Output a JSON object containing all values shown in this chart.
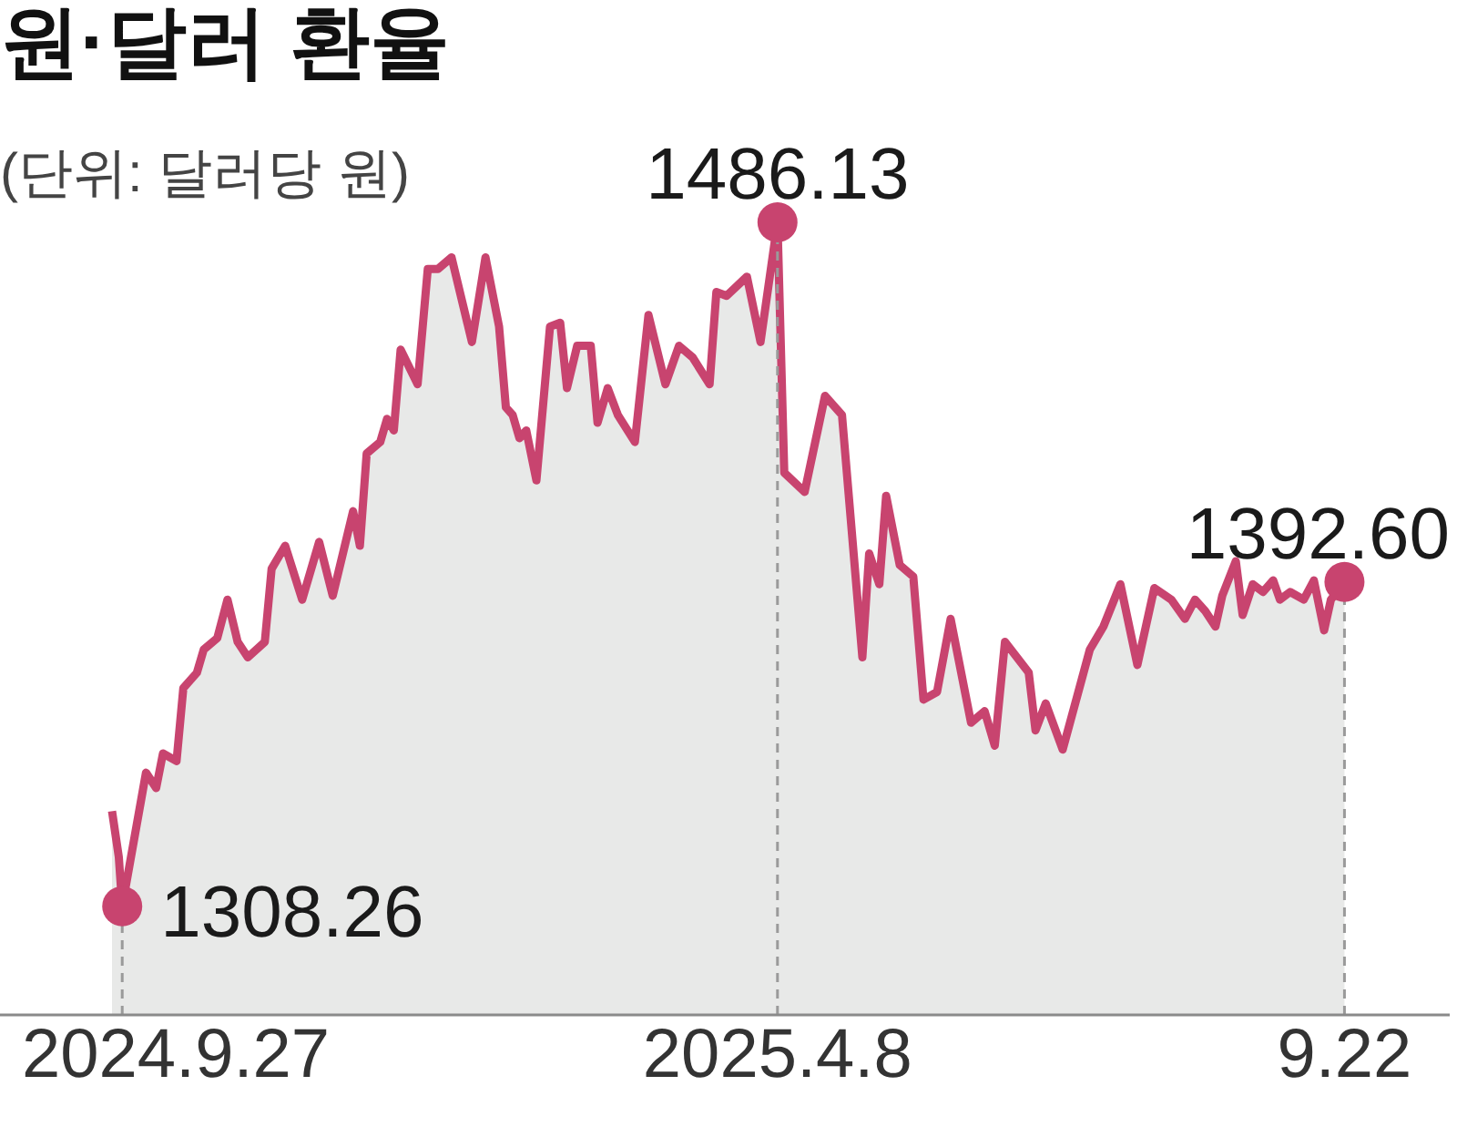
{
  "chart_data": {
    "type": "area",
    "title": "원·달러 환율",
    "subtitle": "(단위: 달러당 원)",
    "xlim": [
      "2024-08-22",
      "2025-10-23"
    ],
    "xticks": [
      {
        "value": "2024-09-27",
        "label": "2024.9.27"
      },
      {
        "value": "2025-04-08",
        "label": "2025.4.8"
      },
      {
        "value": "2025-09-22",
        "label": "9.22"
      }
    ],
    "ylim": [
      1280,
      1486.13
    ],
    "tick_labels": "x",
    "series": [
      {
        "color": "#c8446f",
        "x": [
          "2024-09-24",
          "2024-09-26",
          "2024-09-27",
          "2024-10-04",
          "2024-10-07",
          "2024-10-09",
          "2024-10-13",
          "2024-10-15",
          "2024-10-19",
          "2024-10-21",
          "2024-10-25",
          "2024-10-28",
          "2024-10-31",
          "2024-11-03",
          "2024-11-08",
          "2024-11-10",
          "2024-11-14",
          "2024-11-19",
          "2024-11-24",
          "2024-11-28",
          "2024-12-04",
          "2024-12-06",
          "2024-12-08",
          "2024-12-12",
          "2024-12-14",
          "2024-12-16",
          "2024-12-18",
          "2024-12-23",
          "2024-12-26",
          "2024-12-29",
          "2025-01-02",
          "2025-01-08",
          "2025-01-12",
          "2025-01-16",
          "2025-01-18",
          "2025-01-20",
          "2025-01-22",
          "2025-01-24",
          "2025-01-27",
          "2025-01-31",
          "2025-02-03",
          "2025-02-05",
          "2025-02-08",
          "2025-02-12",
          "2025-02-14",
          "2025-02-17",
          "2025-02-20",
          "2025-02-25",
          "2025-03-01",
          "2025-03-06",
          "2025-03-10",
          "2025-03-14",
          "2025-03-19",
          "2025-03-21",
          "2025-03-24",
          "2025-03-30",
          "2025-04-03",
          "2025-04-08",
          "2025-04-10",
          "2025-04-16",
          "2025-04-22",
          "2025-04-27",
          "2025-05-03",
          "2025-05-05",
          "2025-05-08",
          "2025-05-10",
          "2025-05-14",
          "2025-05-18",
          "2025-05-21",
          "2025-05-25",
          "2025-05-29",
          "2025-06-04",
          "2025-06-08",
          "2025-06-11",
          "2025-06-14",
          "2025-06-21",
          "2025-06-23",
          "2025-06-26",
          "2025-07-01",
          "2025-07-09",
          "2025-07-13",
          "2025-07-18",
          "2025-07-23",
          "2025-07-28",
          "2025-08-02",
          "2025-08-06",
          "2025-08-09",
          "2025-08-12",
          "2025-08-15",
          "2025-08-17",
          "2025-08-21",
          "2025-08-23",
          "2025-08-26",
          "2025-08-29",
          "2025-09-01",
          "2025-09-03",
          "2025-09-06",
          "2025-09-10",
          "2025-09-13",
          "2025-09-16",
          "2025-09-18",
          "2025-09-22"
        ],
        "values": [
          1333,
          1321,
          1308.26,
          1343,
          1339,
          1348,
          1346,
          1365,
          1369,
          1375,
          1378,
          1388,
          1377,
          1373,
          1377,
          1396,
          1402,
          1388,
          1403,
          1389,
          1411,
          1402,
          1426,
          1429,
          1435,
          1432,
          1453,
          1444,
          1474,
          1474,
          1477,
          1455,
          1477,
          1459,
          1438,
          1436,
          1430,
          1432,
          1419,
          1459,
          1460,
          1443,
          1454,
          1454,
          1434,
          1443,
          1436,
          1429,
          1462,
          1444,
          1454,
          1451,
          1444,
          1468,
          1467,
          1472,
          1455,
          1486.13,
          1421,
          1416,
          1441,
          1436,
          1373,
          1400,
          1392,
          1415,
          1397,
          1394,
          1362,
          1364,
          1383,
          1356,
          1359,
          1350,
          1377,
          1369,
          1354,
          1361,
          1349,
          1375,
          1381,
          1392,
          1371,
          1391,
          1388,
          1383,
          1388,
          1385,
          1381,
          1389,
          1398,
          1384,
          1392,
          1390,
          1393,
          1388,
          1390,
          1388,
          1393,
          1380,
          1388,
          1392.6
        ]
      },
      {
        "type": "scatter",
        "color": "#c8446f",
        "marker": "circle",
        "x": [
          "2024-09-27",
          "2025-04-08",
          "2025-09-22"
        ],
        "values": [
          1308.26,
          1486.13,
          1392.6
        ],
        "value_labels": [
          "1308.26",
          "1486.13",
          "1392.60"
        ]
      }
    ],
    "ref_lines": [
      {
        "axis": "x",
        "value": "2024-09-27",
        "color": "#9a9a9a",
        "line_style": "dashed"
      },
      {
        "axis": "x",
        "value": "2025-04-08",
        "color": "#9a9a9a",
        "line_style": "dashed"
      },
      {
        "axis": "x",
        "value": "2025-09-22",
        "color": "#9a9a9a",
        "line_style": "dashed"
      }
    ]
  }
}
